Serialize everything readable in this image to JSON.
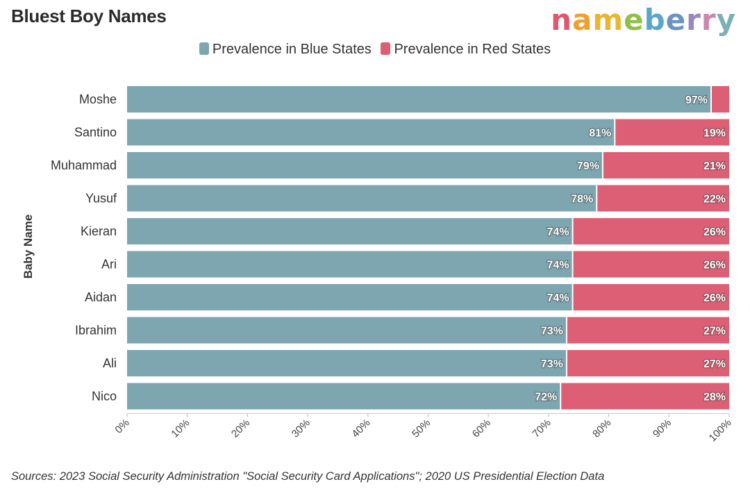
{
  "header": {
    "title": "Bluest Boy Names",
    "logo_text": "nameberry",
    "logo_colors": [
      "#e0566f",
      "#f0a030",
      "#e8b630",
      "#8fbf4a",
      "#5aa6c8",
      "#6a93c2",
      "#9a86c0",
      "#c986b0",
      "#7cb0b4"
    ]
  },
  "footer": {
    "source": "Sources: 2023 Social Security Administration \"Social Security Card Applications\"; 2020 US Presidential Election Data"
  },
  "chart_data": {
    "type": "bar",
    "orientation": "horizontal",
    "stacked": true,
    "categories": [
      "Moshe",
      "Santino",
      "Muhammad",
      "Yusuf",
      "Kieran",
      "Ari",
      "Aidan",
      "Ibrahim",
      "Ali",
      "Nico"
    ],
    "series": [
      {
        "name": "Prevalence in Blue States",
        "color": "#7da6b0",
        "values": [
          97,
          81,
          79,
          78,
          74,
          74,
          74,
          73,
          73,
          72
        ],
        "labels": [
          "97%",
          "81%",
          "79%",
          "78%",
          "74%",
          "74%",
          "74%",
          "73%",
          "73%",
          "72%"
        ]
      },
      {
        "name": "Prevalence in Red States",
        "color": "#dc5f75",
        "values": [
          3,
          19,
          21,
          22,
          26,
          26,
          26,
          27,
          27,
          28
        ],
        "labels": [
          "",
          "19%",
          "21%",
          "22%",
          "26%",
          "26%",
          "26%",
          "27%",
          "27%",
          "28%"
        ]
      }
    ],
    "ylabel": "Baby Name",
    "xlabel": "",
    "xlim": [
      0,
      100
    ],
    "xticks": [
      "0%",
      "10%",
      "20%",
      "30%",
      "40%",
      "50%",
      "60%",
      "70%",
      "80%",
      "90%",
      "100%"
    ],
    "legend": "top-center",
    "grid": false
  }
}
